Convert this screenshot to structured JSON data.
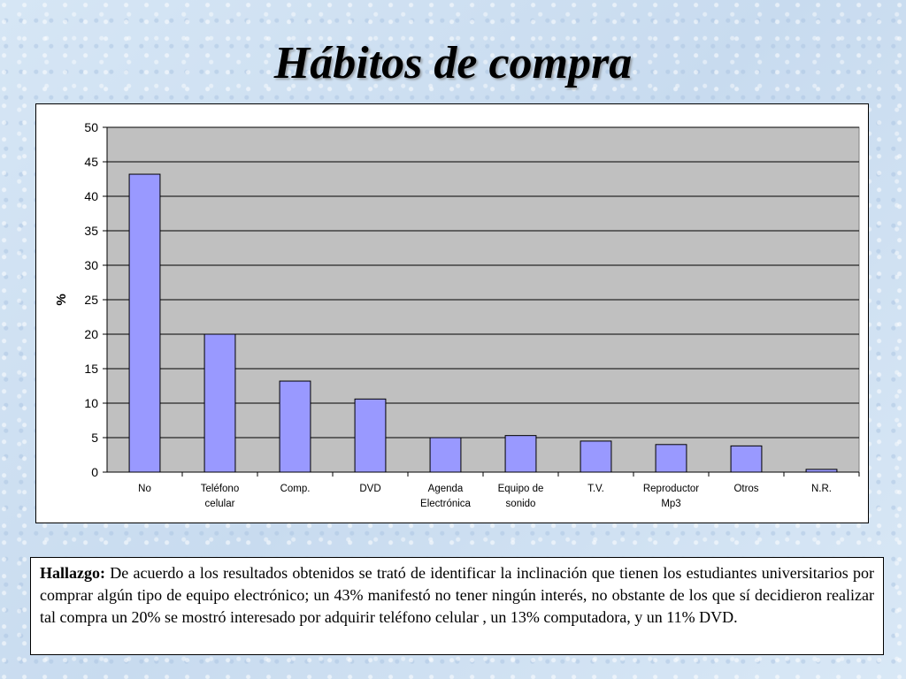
{
  "slide": {
    "title": "Hábitos de compra"
  },
  "chart_data": {
    "type": "bar",
    "categories": [
      [
        "No"
      ],
      [
        "Teléfono",
        "celular"
      ],
      [
        "Comp."
      ],
      [
        "DVD"
      ],
      [
        "Agenda",
        "Electrónica"
      ],
      [
        "Equipo de",
        "sonido"
      ],
      [
        "T.V."
      ],
      [
        "Reproductor",
        "Mp3"
      ],
      [
        "Otros"
      ],
      [
        "N.R."
      ]
    ],
    "values": [
      43.2,
      20.0,
      13.2,
      10.6,
      5.0,
      5.3,
      4.5,
      4.0,
      3.8,
      0.4
    ],
    "xlabel": "",
    "ylabel": "%",
    "ylim": [
      0,
      50
    ],
    "yticks": [
      0,
      5,
      10,
      15,
      20,
      25,
      30,
      35,
      40,
      45,
      50
    ],
    "grid": true,
    "colors": {
      "bar_fill": "#9999ff",
      "plot_background": "#c0c0c0",
      "gridline": "#000000"
    }
  },
  "finding": {
    "label": "Hallazgo:",
    "text": "De acuerdo a los resultados obtenidos se trató de identificar la inclinación que tienen los estudiantes universitarios  por comprar algún tipo de equipo electrónico; un 43% manifestó no tener  ningún interés, no obstante de los que sí decidieron  realizar tal compra un 20% se mostró interesado  por adquirir teléfono celular , un 13% computadora, y un 11% DVD."
  }
}
